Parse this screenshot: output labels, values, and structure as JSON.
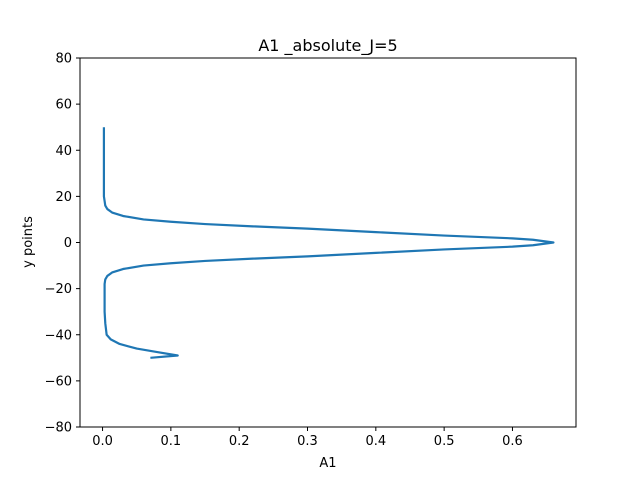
{
  "chart_data": {
    "type": "line",
    "title": "A1 _absolute_J=5",
    "xlabel": "A1",
    "ylabel": "y points",
    "xlim": [
      -0.033,
      0.693
    ],
    "ylim": [
      -80,
      80
    ],
    "xticks": [
      0.0,
      0.1,
      0.2,
      0.3,
      0.4,
      0.5,
      0.6
    ],
    "xtick_labels": [
      "0.0",
      "0.1",
      "0.2",
      "0.3",
      "0.4",
      "0.5",
      "0.6"
    ],
    "yticks": [
      -80,
      -60,
      -40,
      -20,
      0,
      20,
      40,
      60,
      80
    ],
    "ytick_labels": [
      "−80",
      "−60",
      "−40",
      "−20",
      "0",
      "20",
      "40",
      "60",
      "80"
    ],
    "grid": false,
    "colors": {
      "line": "#1f77b4",
      "axes": "#000000",
      "background": "#ffffff"
    },
    "series": [
      {
        "x": [
          0.002,
          0.002,
          0.002,
          0.002,
          0.002,
          0.003,
          0.004,
          0.007,
          0.014,
          0.03,
          0.06,
          0.1,
          0.15,
          0.22,
          0.3,
          0.4,
          0.5,
          0.6,
          0.63,
          0.66,
          0.63,
          0.6,
          0.5,
          0.4,
          0.3,
          0.22,
          0.15,
          0.1,
          0.06,
          0.03,
          0.014,
          0.007,
          0.004,
          0.003,
          0.003,
          0.003,
          0.003,
          0.004,
          0.006,
          0.012,
          0.025,
          0.05,
          0.08,
          0.11,
          0.07
        ],
        "y": [
          50,
          40,
          30,
          25,
          20,
          18,
          16,
          14.5,
          13,
          11.5,
          10,
          9,
          8,
          7,
          6,
          4.5,
          3,
          1.8,
          1.2,
          0,
          -1.2,
          -1.8,
          -3,
          -4.5,
          -6,
          -7,
          -8,
          -9,
          -10,
          -11.5,
          -13,
          -14.5,
          -16,
          -18,
          -20,
          -25,
          -30,
          -35,
          -40,
          -42,
          -44,
          -46,
          -47.5,
          -49,
          -50
        ]
      }
    ]
  }
}
